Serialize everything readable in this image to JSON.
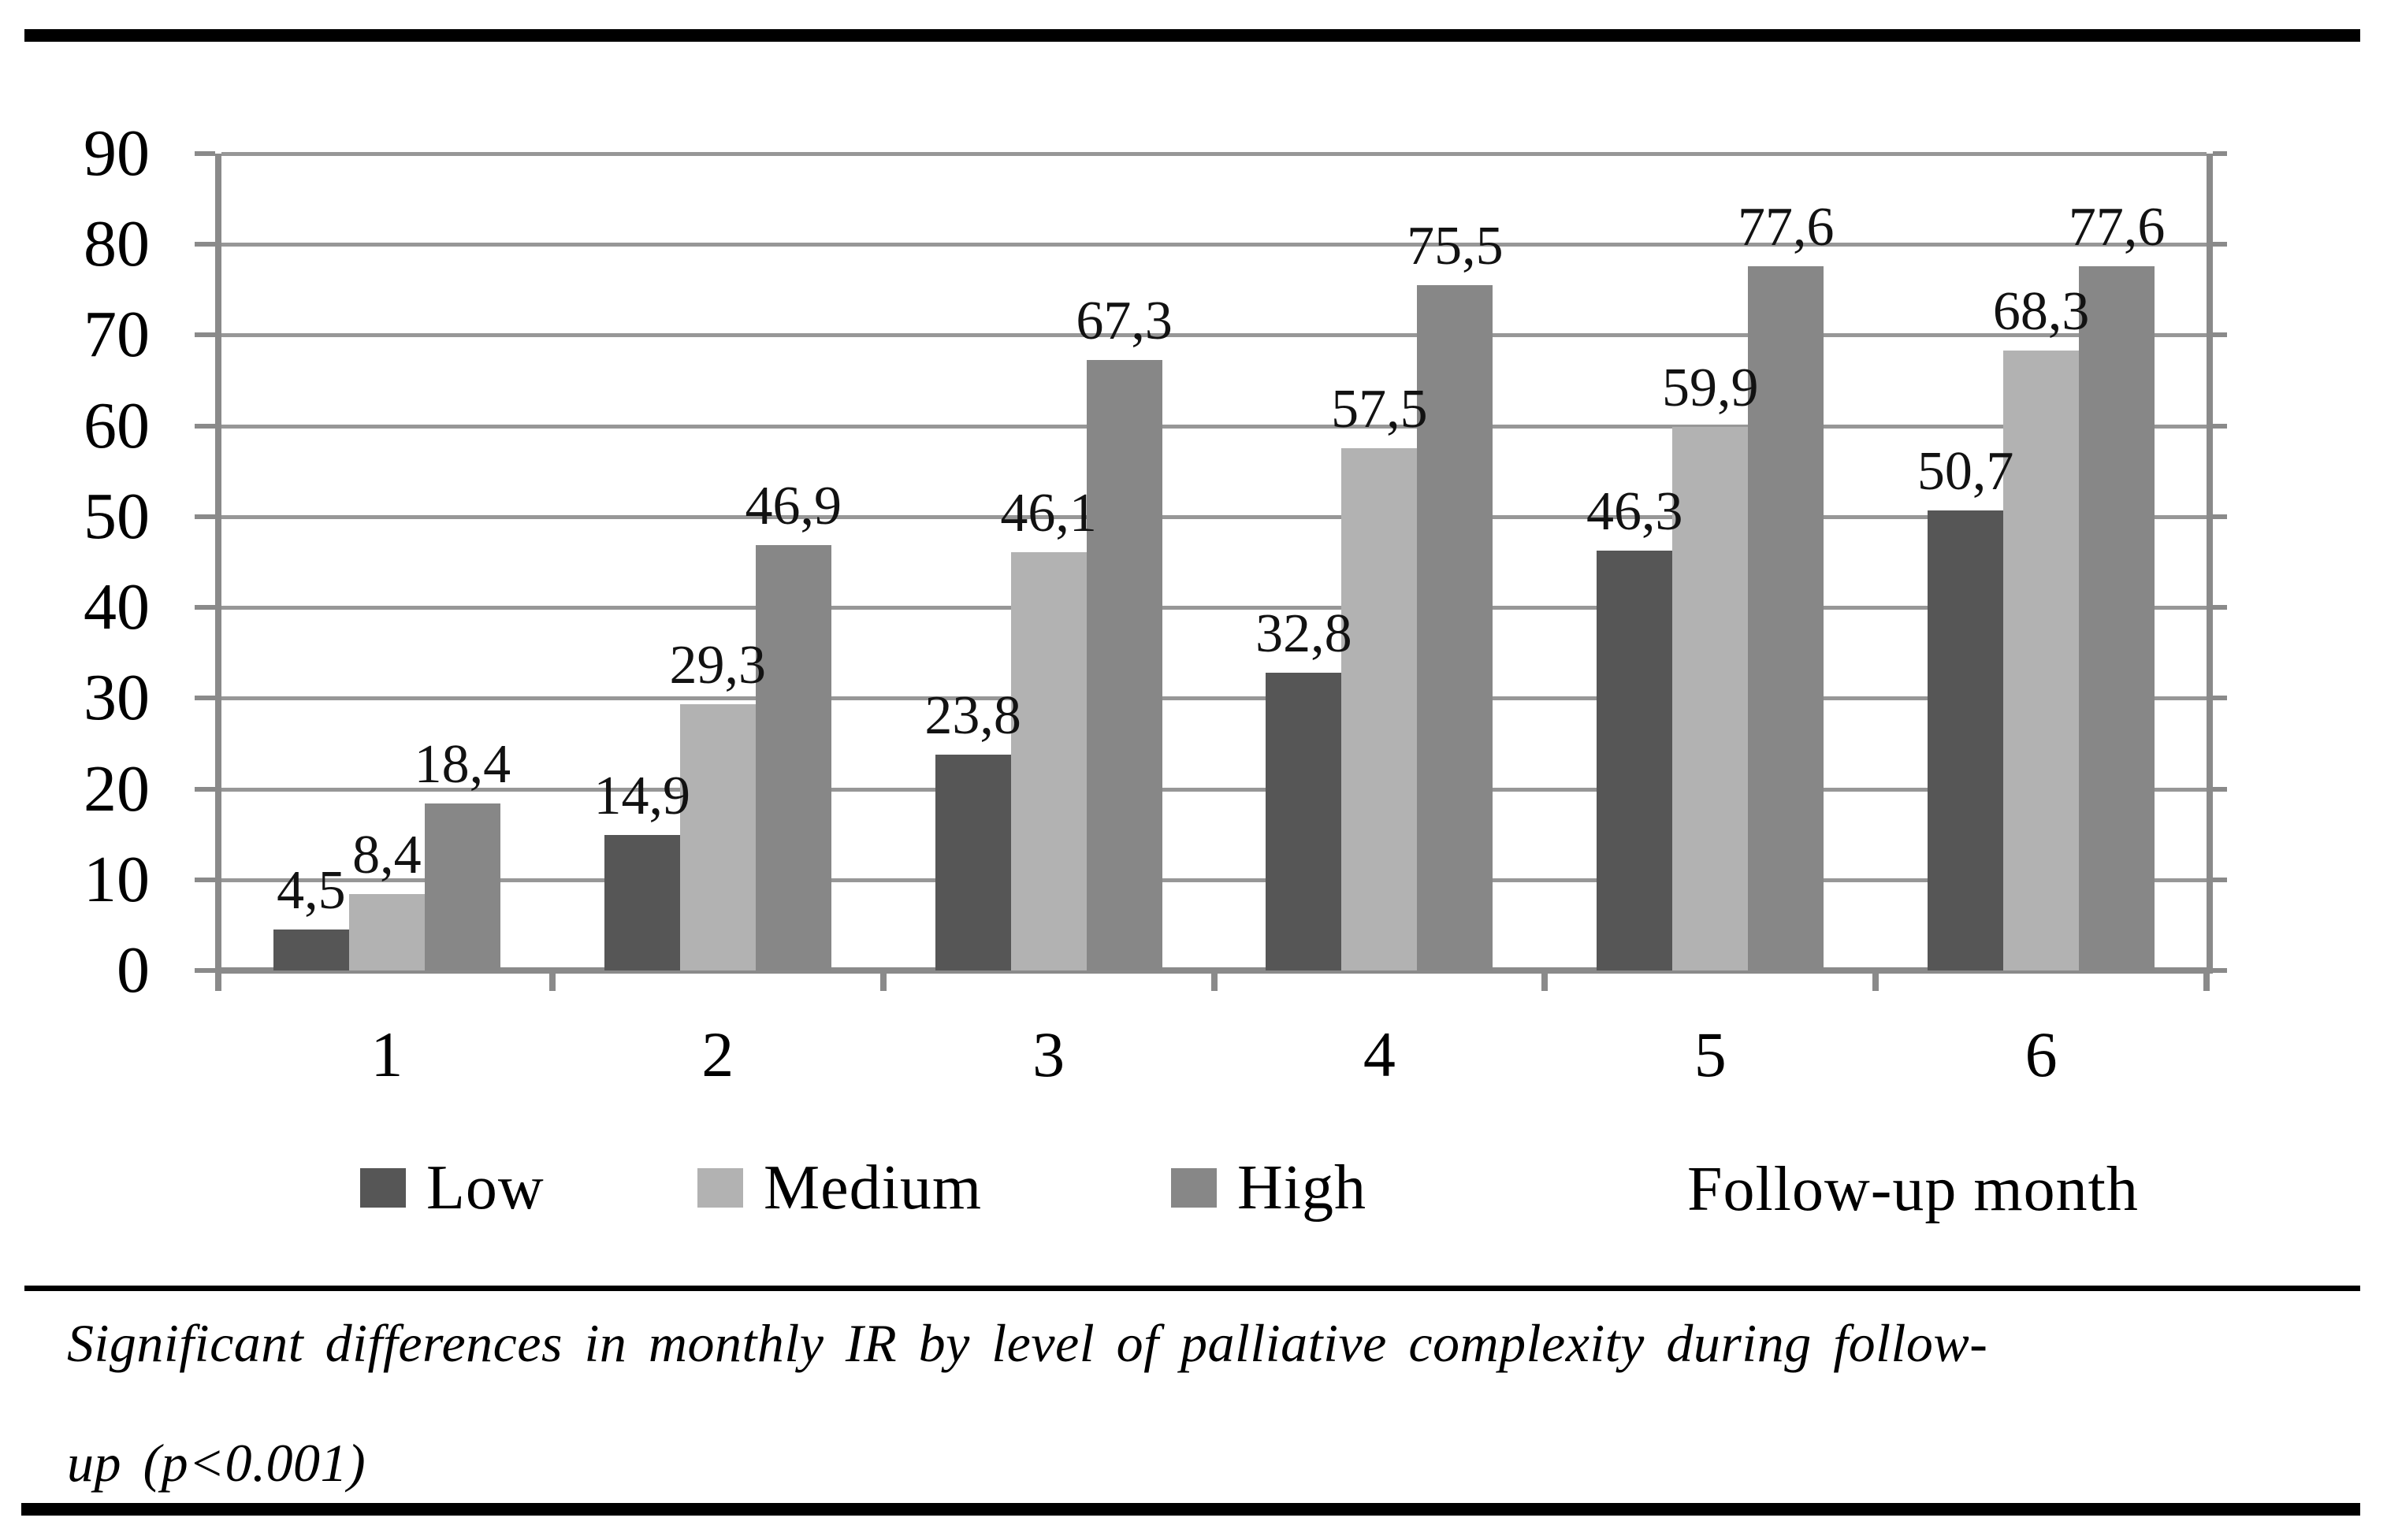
{
  "chart_data": {
    "type": "bar",
    "title": "",
    "categories": [
      "1",
      "2",
      "3",
      "4",
      "5",
      "6"
    ],
    "series": [
      {
        "name": "Low",
        "color": "#565656",
        "values": [
          4.5,
          14.9,
          23.8,
          32.8,
          46.3,
          50.7
        ]
      },
      {
        "name": "Medium",
        "color": "#b2b2b2",
        "values": [
          8.4,
          29.3,
          46.1,
          57.5,
          59.9,
          68.3
        ]
      },
      {
        "name": "High",
        "color": "#878787",
        "values": [
          18.4,
          46.9,
          67.3,
          75.5,
          77.6,
          77.6
        ]
      }
    ],
    "value_labels": [
      [
        "4,5",
        "8,4",
        "18,4"
      ],
      [
        "14,9",
        "29,3",
        "46,9"
      ],
      [
        "23,8",
        "46,1",
        "67,3"
      ],
      [
        "32,8",
        "57,5",
        "75,5"
      ],
      [
        "46,3",
        "59,9",
        "77,6"
      ],
      [
        "50,7",
        "68,3",
        "77,6"
      ]
    ],
    "xlabel": "Follow-up month",
    "ylabel": "",
    "ylim": [
      0,
      90
    ],
    "ytick_step": 10,
    "yticks": [
      "0",
      "10",
      "20",
      "30",
      "40",
      "50",
      "60",
      "70",
      "80",
      "90"
    ],
    "grid": true,
    "legend_position": "bottom",
    "colors": {
      "grid": "#979797",
      "axis": "#8a8a8a",
      "label_text": "#121212"
    }
  },
  "caption": {
    "line1": "Significant differences in monthly IR by level of palliative complexity during follow-",
    "line2": "up (p<0.001)"
  }
}
